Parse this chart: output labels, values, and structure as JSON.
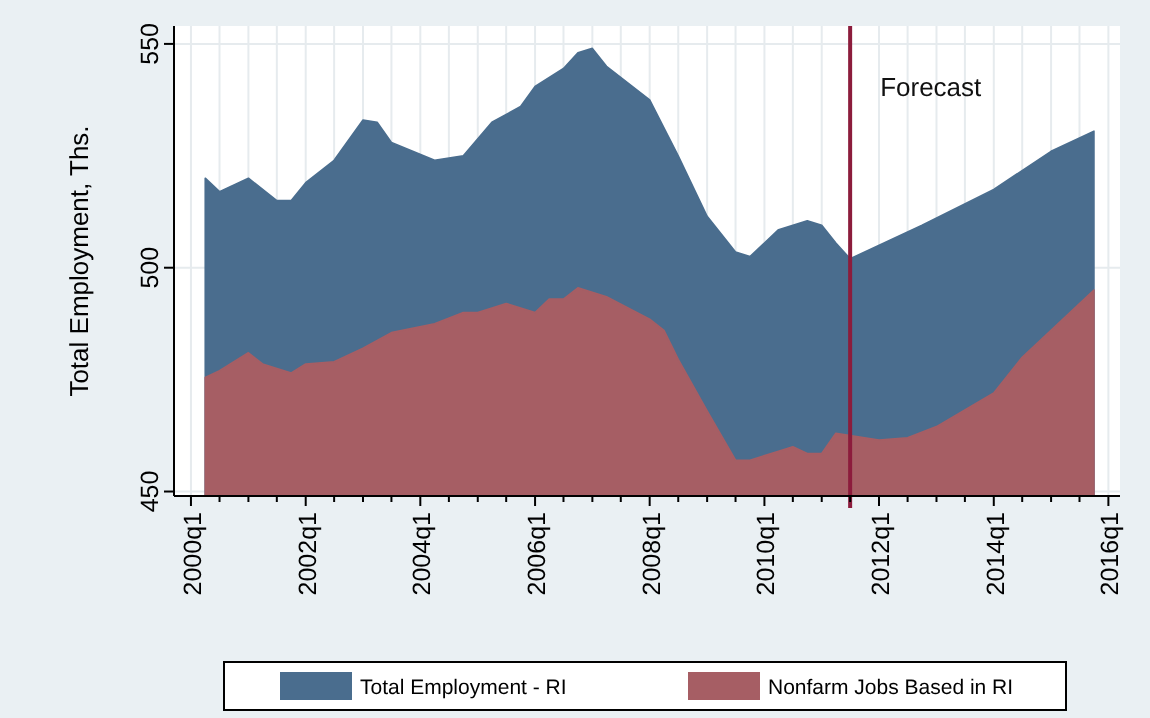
{
  "chart_data": {
    "type": "area",
    "ylabel": "Total Employment, Ths.",
    "xlim": [
      "1999-09-15",
      "2016-03-15"
    ],
    "ylim": [
      449,
      554
    ],
    "yticks": [
      450,
      500,
      550
    ],
    "xticks": [
      {
        "value": "2000-01",
        "label": "2000q1"
      },
      {
        "value": "2000-07",
        "label": null
      },
      {
        "value": "2001-01",
        "label": null
      },
      {
        "value": "2001-07",
        "label": null
      },
      {
        "value": "2002-01",
        "label": "2002q1"
      },
      {
        "value": "2002-07",
        "label": null
      },
      {
        "value": "2003-01",
        "label": null
      },
      {
        "value": "2003-07",
        "label": null
      },
      {
        "value": "2004-01",
        "label": "2004q1"
      },
      {
        "value": "2004-07",
        "label": null
      },
      {
        "value": "2005-01",
        "label": null
      },
      {
        "value": "2005-07",
        "label": null
      },
      {
        "value": "2006-01",
        "label": "2006q1"
      },
      {
        "value": "2006-07",
        "label": null
      },
      {
        "value": "2007-01",
        "label": null
      },
      {
        "value": "2007-07",
        "label": null
      },
      {
        "value": "2008-01",
        "label": "2008q1"
      },
      {
        "value": "2008-07",
        "label": null
      },
      {
        "value": "2009-01",
        "label": null
      },
      {
        "value": "2009-07",
        "label": null
      },
      {
        "value": "2010-01",
        "label": "2010q1"
      },
      {
        "value": "2010-07",
        "label": null
      },
      {
        "value": "2011-01",
        "label": null
      },
      {
        "value": "2011-07",
        "label": null
      },
      {
        "value": "2012-01",
        "label": "2012q1"
      },
      {
        "value": "2012-07",
        "label": null
      },
      {
        "value": "2013-01",
        "label": null
      },
      {
        "value": "2013-07",
        "label": null
      },
      {
        "value": "2014-01",
        "label": "2014q1"
      },
      {
        "value": "2014-07",
        "label": null
      },
      {
        "value": "2015-01",
        "label": null
      },
      {
        "value": "2015-07",
        "label": null
      },
      {
        "value": "2016-01",
        "label": "2016q1"
      }
    ],
    "grid": true,
    "legend": "bottom",
    "series": [
      {
        "name": "Total Employment - RI",
        "color": "#4a6d8e",
        "x": [
          "2000-04",
          "2000-07",
          "2001-01",
          "2001-07",
          "2001-10",
          "2002-01",
          "2002-07",
          "2003-01",
          "2003-04",
          "2003-07",
          "2004-04",
          "2004-10",
          "2005-04",
          "2005-10",
          "2006-01",
          "2006-07",
          "2006-10",
          "2007-01",
          "2007-04",
          "2008-01",
          "2008-07",
          "2009-01",
          "2009-07",
          "2009-10",
          "2010-04",
          "2010-10",
          "2011-01",
          "2011-04",
          "2011-07",
          "2012-10",
          "2014-01",
          "2015-01",
          "2015-10"
        ],
        "values": [
          520,
          517,
          520,
          515,
          515,
          519,
          524,
          533,
          532.5,
          528,
          524,
          525,
          532.5,
          536,
          540.5,
          544.5,
          548,
          549,
          545,
          537.5,
          525,
          511.5,
          503.5,
          502.5,
          508.5,
          510.5,
          509.5,
          505.5,
          502,
          509.5,
          517.5,
          526,
          530.5
        ]
      },
      {
        "name": "Nonfarm Jobs Based in RI",
        "color": "#a65e64",
        "x": [
          "2000-04",
          "2000-07",
          "2001-01",
          "2001-04",
          "2001-10",
          "2002-01",
          "2002-07",
          "2003-01",
          "2003-07",
          "2004-04",
          "2004-10",
          "2005-01",
          "2005-07",
          "2006-01",
          "2006-04",
          "2006-07",
          "2006-10",
          "2007-04",
          "2008-01",
          "2008-04",
          "2008-07",
          "2009-01",
          "2009-07",
          "2009-10",
          "2010-04",
          "2010-07",
          "2010-10",
          "2011-01",
          "2011-04",
          "2011-07",
          "2012-01",
          "2012-07",
          "2013-01",
          "2014-01",
          "2014-07",
          "2015-10"
        ],
        "values": [
          475.5,
          477,
          481,
          478.5,
          476.5,
          478.5,
          479,
          482,
          485.5,
          487.5,
          490,
          490,
          492,
          490,
          493,
          493,
          495.5,
          493.5,
          488.5,
          486,
          479.5,
          468,
          457,
          457,
          459,
          460,
          458.5,
          458.5,
          463,
          462.5,
          461.5,
          462,
          464.5,
          472,
          480,
          495
        ]
      }
    ],
    "ref_lines": [
      {
        "axis": "x",
        "value": "2011-07",
        "label": "Forecast",
        "color": "#8c1c3c"
      }
    ]
  }
}
